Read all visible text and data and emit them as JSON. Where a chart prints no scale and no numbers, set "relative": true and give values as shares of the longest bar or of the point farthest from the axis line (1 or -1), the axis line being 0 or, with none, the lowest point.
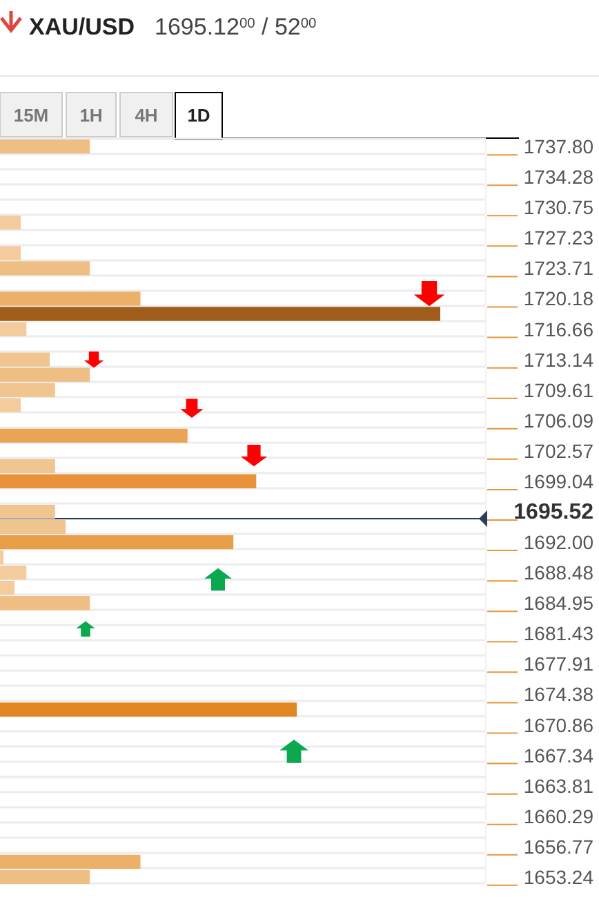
{
  "chart_data": {
    "type": "bar",
    "orientation": "horizontal",
    "relative": true,
    "title": "XAU/USD",
    "subtitle": "1695.12$^{00}$ / 52$^{00}$",
    "annotations": [
      "15M",
      "1H",
      "4H",
      "1D"
    ],
    "categories": [
      "1737.80",
      null,
      "1734.28",
      null,
      "1730.75",
      null,
      "1727.23",
      null,
      "1723.71",
      null,
      "1720.18",
      null,
      "1716.66",
      null,
      "1713.14",
      null,
      "1709.61",
      null,
      "1706.09",
      null,
      "1702.57",
      null,
      "1699.04",
      null,
      "1695.52",
      null,
      "1692.00",
      null,
      "1688.48",
      null,
      "1684.95",
      null,
      "1681.43",
      null,
      "1677.91",
      null,
      "1674.38",
      null,
      "1670.86",
      null,
      "1667.34",
      null,
      "1663.81",
      null,
      "1660.29",
      null,
      "1656.77",
      null,
      "1653.24"
    ],
    "values": [
      0.204,
      null,
      null,
      null,
      null,
      0.047,
      null,
      0.047,
      0.204,
      null,
      0.319,
      1,
      0.06,
      null,
      0.113,
      0.204,
      0.125,
      0.047,
      null,
      0.426,
      null,
      0.125,
      0.582,
      null,
      0.125,
      0.149,
      0.53,
      0.008,
      0.06,
      0.033,
      0.204,
      null,
      null,
      null,
      null,
      null,
      null,
      0.674,
      null,
      null,
      null,
      null,
      null,
      null,
      null,
      null,
      null,
      0.319,
      0.204
    ],
    "colors": [
      "#efbe85",
      null,
      null,
      null,
      null,
      "#f3cb9c",
      null,
      "#f3cb9c",
      "#efbe85",
      null,
      "#ecb068",
      "#a05c1a",
      "#f3cb9c",
      null,
      "#f1c590",
      "#efbe85",
      "#f1c590",
      "#f3cb9c",
      null,
      "#e9a456",
      null,
      "#f1c590",
      "#e8923a",
      null,
      "#f1c590",
      "#f0c48e",
      "#e89d48",
      "#f3cb9c",
      "#f3cb9c",
      "#f3cb9c",
      "#efbe85",
      null,
      null,
      null,
      null,
      null,
      null,
      "#e2871f",
      null,
      null,
      null,
      null,
      null,
      null,
      null,
      null,
      null,
      "#ecb068",
      "#efbe85"
    ],
    "grid": true,
    "ref_lines": [
      {
        "axis": "y",
        "value": "1695.52",
        "color": "#2c3e5c"
      }
    ]
  }
}
